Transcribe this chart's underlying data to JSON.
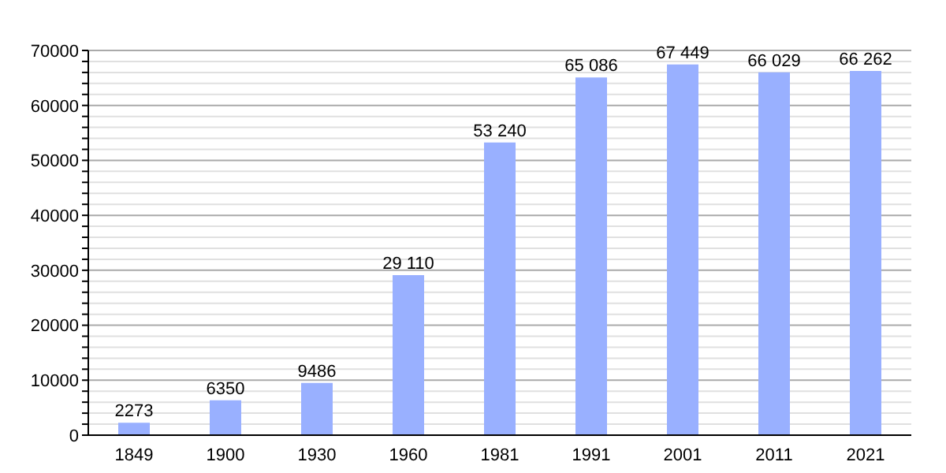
{
  "chart_data": {
    "type": "bar",
    "categories": [
      "1849",
      "1900",
      "1930",
      "1960",
      "1981",
      "1991",
      "2001",
      "2011",
      "2021"
    ],
    "values": [
      2273,
      6350,
      9486,
      29110,
      53240,
      65086,
      67449,
      66029,
      66262
    ],
    "value_labels": [
      "2273",
      "6350",
      "9486",
      "29 110",
      "53 240",
      "65 086",
      "67 449",
      "66 029",
      "66 262"
    ],
    "color": "#99b0ff",
    "ylim": [
      0,
      70000
    ],
    "yticks": [
      0,
      {
        "value": 2000,
        "label": null
      },
      {
        "value": 4000,
        "label": null
      },
      {
        "value": 6000,
        "label": null
      },
      {
        "value": 8000,
        "label": null
      },
      10000,
      {
        "value": 12000,
        "label": null
      },
      {
        "value": 14000,
        "label": null
      },
      {
        "value": 16000,
        "label": null
      },
      {
        "value": 18000,
        "label": null
      },
      20000,
      {
        "value": 22000,
        "label": null
      },
      {
        "value": 24000,
        "label": null
      },
      {
        "value": 26000,
        "label": null
      },
      {
        "value": 28000,
        "label": null
      },
      30000,
      {
        "value": 32000,
        "label": null
      },
      {
        "value": 34000,
        "label": null
      },
      {
        "value": 36000,
        "label": null
      },
      {
        "value": 38000,
        "label": null
      },
      40000,
      {
        "value": 42000,
        "label": null
      },
      {
        "value": 44000,
        "label": null
      },
      {
        "value": 46000,
        "label": null
      },
      {
        "value": 48000,
        "label": null
      },
      50000,
      {
        "value": 52000,
        "label": null
      },
      {
        "value": 54000,
        "label": null
      },
      {
        "value": 56000,
        "label": null
      },
      {
        "value": 58000,
        "label": null
      },
      60000,
      {
        "value": 62000,
        "label": null
      },
      {
        "value": 64000,
        "label": null
      },
      {
        "value": 66000,
        "label": null
      },
      {
        "value": 68000,
        "label": null
      },
      70000
    ],
    "grid": "y"
  }
}
